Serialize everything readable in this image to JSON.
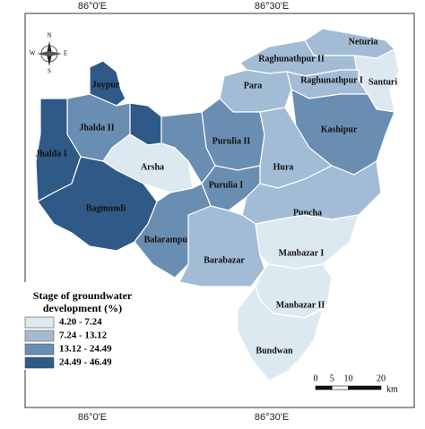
{
  "map": {
    "lon_labels": [
      "86°0'E",
      "86°30'E"
    ],
    "compass": [
      "N",
      "E",
      "S",
      "W"
    ],
    "legend": {
      "title": [
        "Stage of groundwater",
        "development (%)"
      ],
      "classes": [
        {
          "label": "4.20 - 7.24",
          "color": "#dde9f1"
        },
        {
          "label": "7.24 - 13.12",
          "color": "#a2bcd5"
        },
        {
          "label": "13.12 - 24.49",
          "color": "#6a8db2"
        },
        {
          "label": "24.49 - 46.49",
          "color": "#2f5986"
        }
      ]
    },
    "blocks": [
      {
        "name": "Neturia",
        "class": 1
      },
      {
        "name": "Raghunathpur II",
        "class": 1
      },
      {
        "name": "Santuri",
        "class": 0
      },
      {
        "name": "Para",
        "class": 1
      },
      {
        "name": "Raghunathpur I",
        "class": 1
      },
      {
        "name": "Kashipur",
        "class": 2
      },
      {
        "name": "Joypur",
        "class": 3
      },
      {
        "name": "Jhalda II",
        "class": 2
      },
      {
        "name": null,
        "class": 3
      },
      {
        "name": "Jhalda I",
        "class": 3
      },
      {
        "name": "Purulia II",
        "class": 2
      },
      {
        "name": null,
        "class": 2
      },
      {
        "name": "Arsha",
        "class": 0
      },
      {
        "name": "Purulia I",
        "class": 2
      },
      {
        "name": "Hura",
        "class": 1
      },
      {
        "name": "Bagmundi",
        "class": 3
      },
      {
        "name": "Puncha",
        "class": 1
      },
      {
        "name": "Balarampur",
        "class": 2
      },
      {
        "name": "Barabazar",
        "class": 1
      },
      {
        "name": "Manbazar I",
        "class": 0
      },
      {
        "name": "Manbazar II",
        "class": 0
      },
      {
        "name": "Bundwan",
        "class": 0
      }
    ],
    "scale": {
      "ticks": [
        0,
        5,
        10,
        20
      ],
      "unit": "km"
    }
  }
}
